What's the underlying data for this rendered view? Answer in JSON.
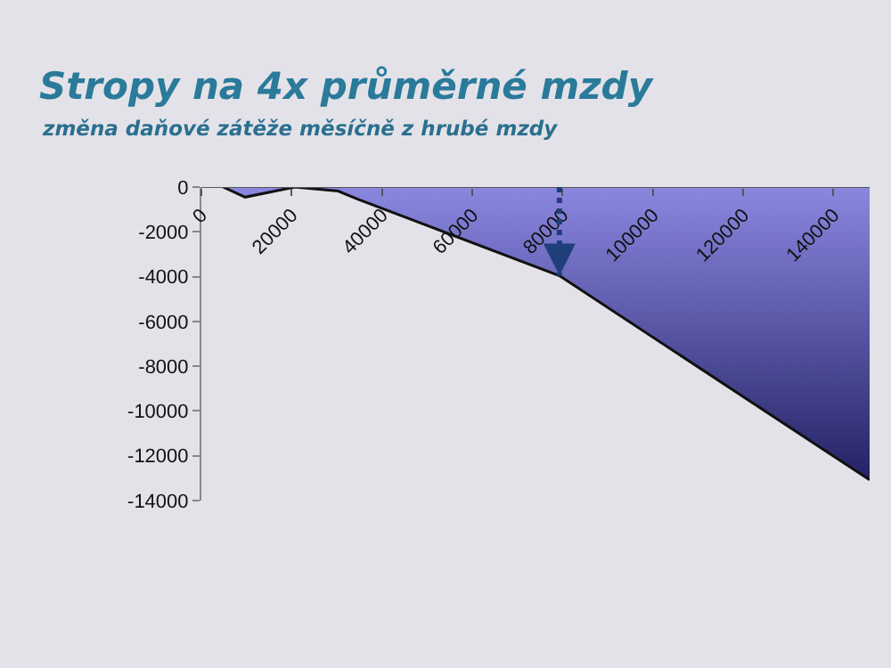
{
  "chart_data": {
    "type": "area",
    "title": "Stropy na 4x průměrné mzdy",
    "subtitle": "změna daňové zátěže měsíčně z hrubé mzdy",
    "x": [
      4800,
      9700,
      20700,
      30300,
      34500,
      79300,
      148000
    ],
    "series": [
      {
        "color": "#8a87e0",
        "values": [
          0,
          -450,
          0,
          -180,
          -530,
          -3960,
          -13080
        ]
      }
    ],
    "xlim": [
      0,
      148000
    ],
    "xticks": [
      0,
      20000,
      40000,
      60000,
      80000,
      100000,
      120000,
      140000
    ],
    "ylim": [
      -14000,
      0
    ],
    "yticks": [
      0,
      -2000,
      -4000,
      -6000,
      -8000,
      -10000,
      -12000,
      -14000
    ],
    "ref_lines": [
      {
        "axis": "x",
        "value": 79300,
        "color": "#1f3f7a",
        "line_style": "dotted"
      }
    ],
    "data_labels": false
  }
}
